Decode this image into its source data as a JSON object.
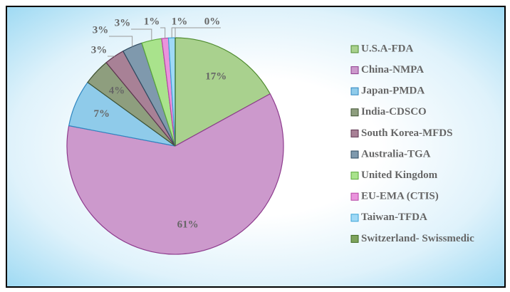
{
  "chart_data": {
    "type": "pie",
    "categories": [
      "U.S.A-FDA",
      "China-NMPA",
      "Japan-PMDA",
      "India-CDSCO",
      "South Korea-MFDS",
      "Australia-TGA",
      "United Kingdom",
      "EU-EMA (CTIS)",
      "Taiwan-TFDA",
      "Switzerland- Swissmedic"
    ],
    "values": [
      17,
      61,
      7,
      4,
      3,
      3,
      3,
      1,
      1,
      0
    ],
    "value_labels": [
      "17%",
      "61%",
      "7%",
      "4%",
      "3%",
      "3%",
      "3%",
      "1%",
      "1%",
      "0%"
    ],
    "colors": [
      "#a9d18e",
      "#cc99cc",
      "#8fcbea",
      "#8e9e7e",
      "#a88196",
      "#7f99ad",
      "#a9e38c",
      "#ea93dc",
      "#9fd9f6",
      "#7ea35c"
    ],
    "strokes": [
      "#4e8a2e",
      "#8e3c8e",
      "#2f86c0",
      "#3f5232",
      "#5e3550",
      "#2f4a60",
      "#5aa73a",
      "#b646a4",
      "#3aa3d8",
      "#3f6a22"
    ],
    "legend": "right"
  }
}
